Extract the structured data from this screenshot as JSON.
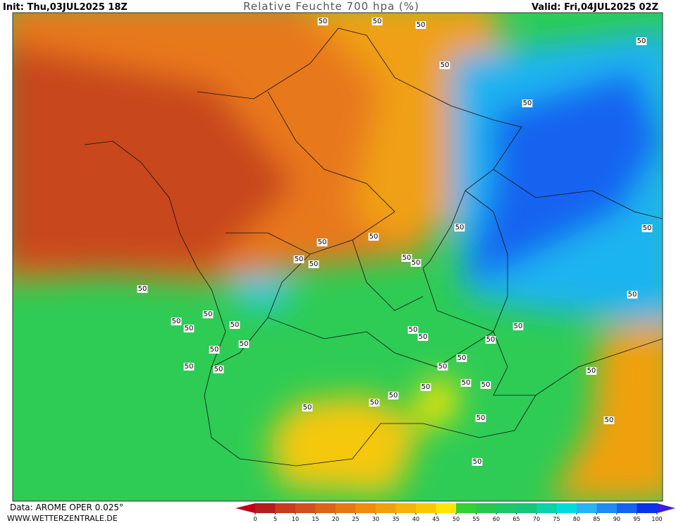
{
  "header": {
    "init": "Init: Thu,03JUL2025 18Z",
    "title": "Relative Feuchte 700 hpa (%)",
    "valid": "Valid: Fri,04JUL2025 02Z"
  },
  "footer": {
    "data": "Data: AROME OPER 0.025°",
    "site": "WWW.WETTERZENTRALE.DE"
  },
  "colorbar": {
    "ticks": [
      0,
      5,
      10,
      15,
      20,
      25,
      30,
      35,
      40,
      45,
      50,
      55,
      60,
      65,
      70,
      75,
      80,
      85,
      90,
      95,
      100
    ],
    "under_color": "#c0001a",
    "over_color": "#3c1edc",
    "colors": [
      "#b41e1e",
      "#c83c1e",
      "#d2501e",
      "#dc6414",
      "#e67814",
      "#f08c0a",
      "#f0a00a",
      "#f5b40a",
      "#fac800",
      "#ffe600",
      "#32d232",
      "#28c850",
      "#1ec864",
      "#14c878",
      "#0ad2aa",
      "#00dcdc",
      "#28b4f0",
      "#1e8cf0",
      "#1464f0",
      "#0a32e6"
    ]
  },
  "contour_labels": [
    "50",
    "50",
    "50",
    "50",
    "50",
    "50",
    "50",
    "50",
    "50",
    "50",
    "50",
    "50",
    "50",
    "50",
    "50",
    "50",
    "50",
    "50",
    "50",
    "50",
    "50",
    "50",
    "50",
    "50",
    "50",
    "50",
    "50",
    "50",
    "50",
    "50",
    "50",
    "50",
    "50",
    "50",
    "50",
    "50",
    "50",
    "50",
    "50",
    "50"
  ]
}
